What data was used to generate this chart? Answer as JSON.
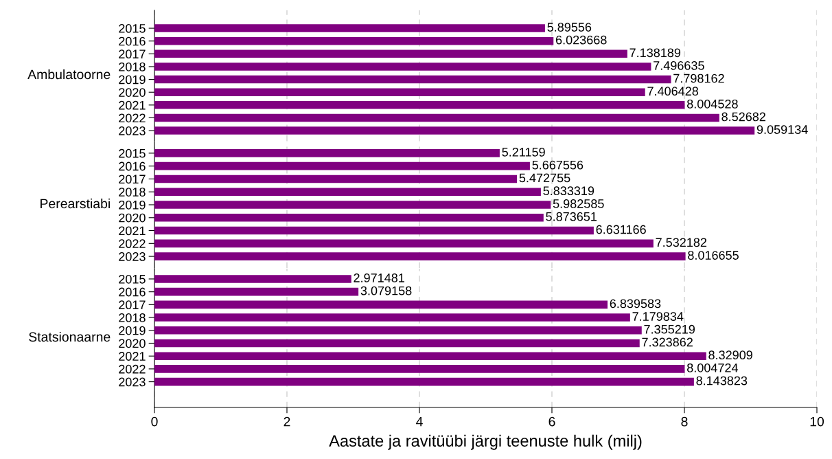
{
  "chart_data": [
    {
      "type": "bar",
      "orientation": "horizontal",
      "ylabel": "Ambulatoorne",
      "categories": [
        "2015",
        "2016",
        "2017",
        "2018",
        "2019",
        "2020",
        "2021",
        "2022",
        "2023"
      ],
      "values": [
        5.89556,
        6.023668,
        7.138189,
        7.496635,
        7.798162,
        7.406428,
        8.004528,
        8.52682,
        9.059134
      ],
      "color": "#800080",
      "data_labels": true,
      "xlim": [
        0,
        10
      ],
      "xticks": [
        0,
        2,
        4,
        6,
        8,
        10
      ],
      "grid": "x",
      "tick_labels": "y"
    },
    {
      "type": "bar",
      "orientation": "horizontal",
      "ylabel": "Perearstiabi",
      "categories": [
        "2015",
        "2016",
        "2017",
        "2018",
        "2019",
        "2020",
        "2021",
        "2022",
        "2023"
      ],
      "values": [
        5.21159,
        5.667556,
        5.472755,
        5.833319,
        5.982585,
        5.873651,
        6.631166,
        7.532182,
        8.016655
      ],
      "color": "#800080",
      "data_labels": true,
      "xlim": [
        0,
        10
      ],
      "xticks": [
        0,
        2,
        4,
        6,
        8,
        10
      ],
      "grid": "x",
      "tick_labels": "y"
    },
    {
      "type": "bar",
      "orientation": "horizontal",
      "ylabel": "Statsionaarne",
      "xlabel": "Aastate ja ravitüübi järgi teenuste hulk (milj)",
      "categories": [
        "2015",
        "2016",
        "2017",
        "2018",
        "2019",
        "2020",
        "2021",
        "2022",
        "2023"
      ],
      "values": [
        2.971481,
        3.079158,
        6.839583,
        7.179834,
        7.355219,
        7.323862,
        8.32909,
        8.004724,
        8.143823
      ],
      "color": "#800080",
      "data_labels": true,
      "xlim": [
        0,
        10
      ],
      "xticks": [
        0,
        2,
        4,
        6,
        8,
        10
      ],
      "grid": "x"
    }
  ]
}
